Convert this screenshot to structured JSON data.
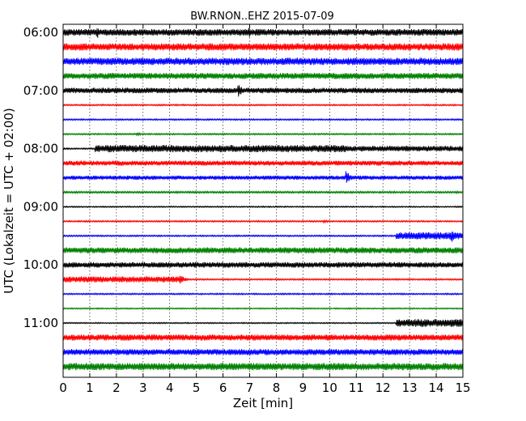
{
  "chart_data": {
    "type": "line",
    "title": "BW.RNON..EHZ 2015-07-09",
    "xlabel": "Zeit  [min]",
    "ylabel": "UTC (Lokalzeit = UTC + 02:00)",
    "xlim": [
      0,
      15
    ],
    "x_ticks": [
      0,
      1,
      2,
      3,
      4,
      5,
      6,
      7,
      8,
      9,
      10,
      11,
      12,
      13,
      14,
      15
    ],
    "y_tick_labels": [
      "06:00",
      "07:00",
      "08:00",
      "09:00",
      "10:00",
      "11:00"
    ],
    "grid": true,
    "colors": [
      "#000000",
      "#ff0000",
      "#0000ff",
      "#008000"
    ],
    "series": [
      {
        "start": "06:00",
        "amplitude": 0.55,
        "events": [
          {
            "t": 1.3,
            "a": 0.9
          },
          {
            "t": 7.0,
            "a": 0.85
          }
        ]
      },
      {
        "start": "06:15",
        "amplitude": 0.6,
        "events": []
      },
      {
        "start": "06:30",
        "amplitude": 0.6,
        "events": []
      },
      {
        "start": "06:45",
        "amplitude": 0.5,
        "events": []
      },
      {
        "start": "07:00",
        "amplitude": 0.45,
        "events": [
          {
            "t": 6.6,
            "a": 1.1
          }
        ]
      },
      {
        "start": "07:15",
        "amplitude": 0.12,
        "events": []
      },
      {
        "start": "07:30",
        "amplitude": 0.12,
        "events": []
      },
      {
        "start": "07:45",
        "amplitude": 0.12,
        "events": [
          {
            "t": 2.8,
            "a": 0.3
          }
        ]
      },
      {
        "start": "08:00",
        "amplitude": 0.12,
        "events": [],
        "segments": [
          {
            "from": 1.2,
            "to": 10.6,
            "a": 0.6
          },
          {
            "from": 10.6,
            "to": 15,
            "a": 0.45
          }
        ]
      },
      {
        "start": "08:15",
        "amplitude": 0.4,
        "events": []
      },
      {
        "start": "08:30",
        "amplitude": 0.35,
        "events": [
          {
            "t": 10.65,
            "a": 1.1
          }
        ]
      },
      {
        "start": "08:45",
        "amplitude": 0.15,
        "events": []
      },
      {
        "start": "09:00",
        "amplitude": 0.1,
        "events": []
      },
      {
        "start": "09:15",
        "amplitude": 0.12,
        "events": [
          {
            "t": 9.8,
            "a": 0.3
          }
        ]
      },
      {
        "start": "09:30",
        "amplitude": 0.12,
        "events": [
          {
            "t": 14.6,
            "a": 1.0
          }
        ],
        "segments": [
          {
            "from": 12.5,
            "to": 15,
            "a": 0.6
          }
        ]
      },
      {
        "start": "09:45",
        "amplitude": 0.5,
        "events": []
      },
      {
        "start": "10:00",
        "amplitude": 0.45,
        "events": []
      },
      {
        "start": "10:15",
        "amplitude": 0.12,
        "events": [
          {
            "t": 4.4,
            "a": 1.0
          }
        ],
        "segments": [
          {
            "from": 0,
            "to": 4.5,
            "a": 0.5
          }
        ]
      },
      {
        "start": "10:30",
        "amplitude": 0.12,
        "events": []
      },
      {
        "start": "10:45",
        "amplitude": 0.1,
        "events": []
      },
      {
        "start": "11:00",
        "amplitude": 0.1,
        "events": [],
        "segments": [
          {
            "from": 12.5,
            "to": 15,
            "a": 0.65
          }
        ]
      },
      {
        "start": "11:15",
        "amplitude": 0.5,
        "events": []
      },
      {
        "start": "11:30",
        "amplitude": 0.5,
        "events": []
      },
      {
        "start": "11:45",
        "amplitude": 0.6,
        "events": []
      }
    ]
  }
}
